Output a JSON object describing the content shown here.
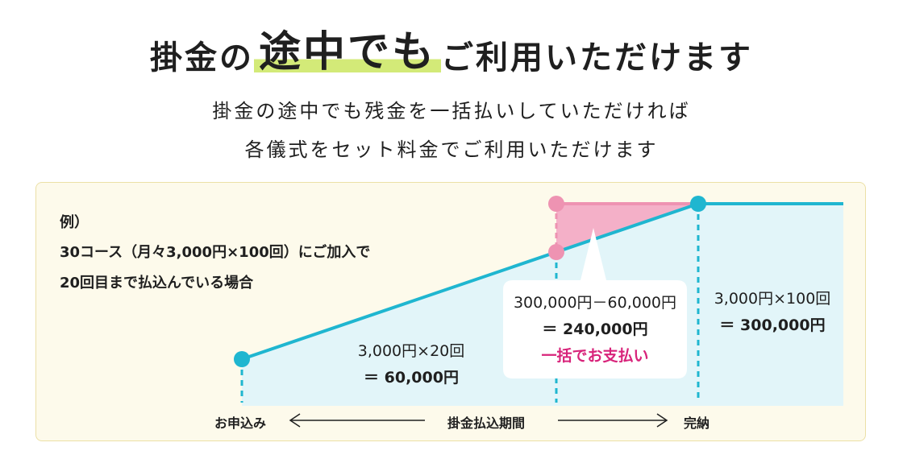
{
  "title": {
    "part1": "掛金の",
    "highlight": "途中でも",
    "part2": "ご利用いただけます"
  },
  "subtitle": {
    "line1": "掛金の途中でも残金を一括払いしていただければ",
    "line2": "各儀式をセット料金でご利用いただけます"
  },
  "example": {
    "line1": "例）",
    "line2": "30コース（月々3,000円×100回）にご加入で",
    "line3": "20回目まで払込んでいる場合"
  },
  "labels": {
    "paid_line1": "3,000円×20回",
    "paid_line2": "＝ 60,000円",
    "balance_line1": "300,000円－60,000円",
    "balance_line2": "＝ 240,000円",
    "balance_line3": "一括でお支払い",
    "total_line1": "3,000円×100回",
    "total_line2": "＝ 300,000円"
  },
  "axis": {
    "start": "お申込み",
    "middle": "掛金払込期間",
    "end": "完納"
  },
  "colors": {
    "line": "#1fb6d0",
    "area": "#e2f5f9",
    "balance": "#f4b0c8",
    "balance_point": "#ee93b2",
    "highlight": "#d3ea78",
    "accent": "#d8237a",
    "panel": "#fdfaeb"
  }
}
